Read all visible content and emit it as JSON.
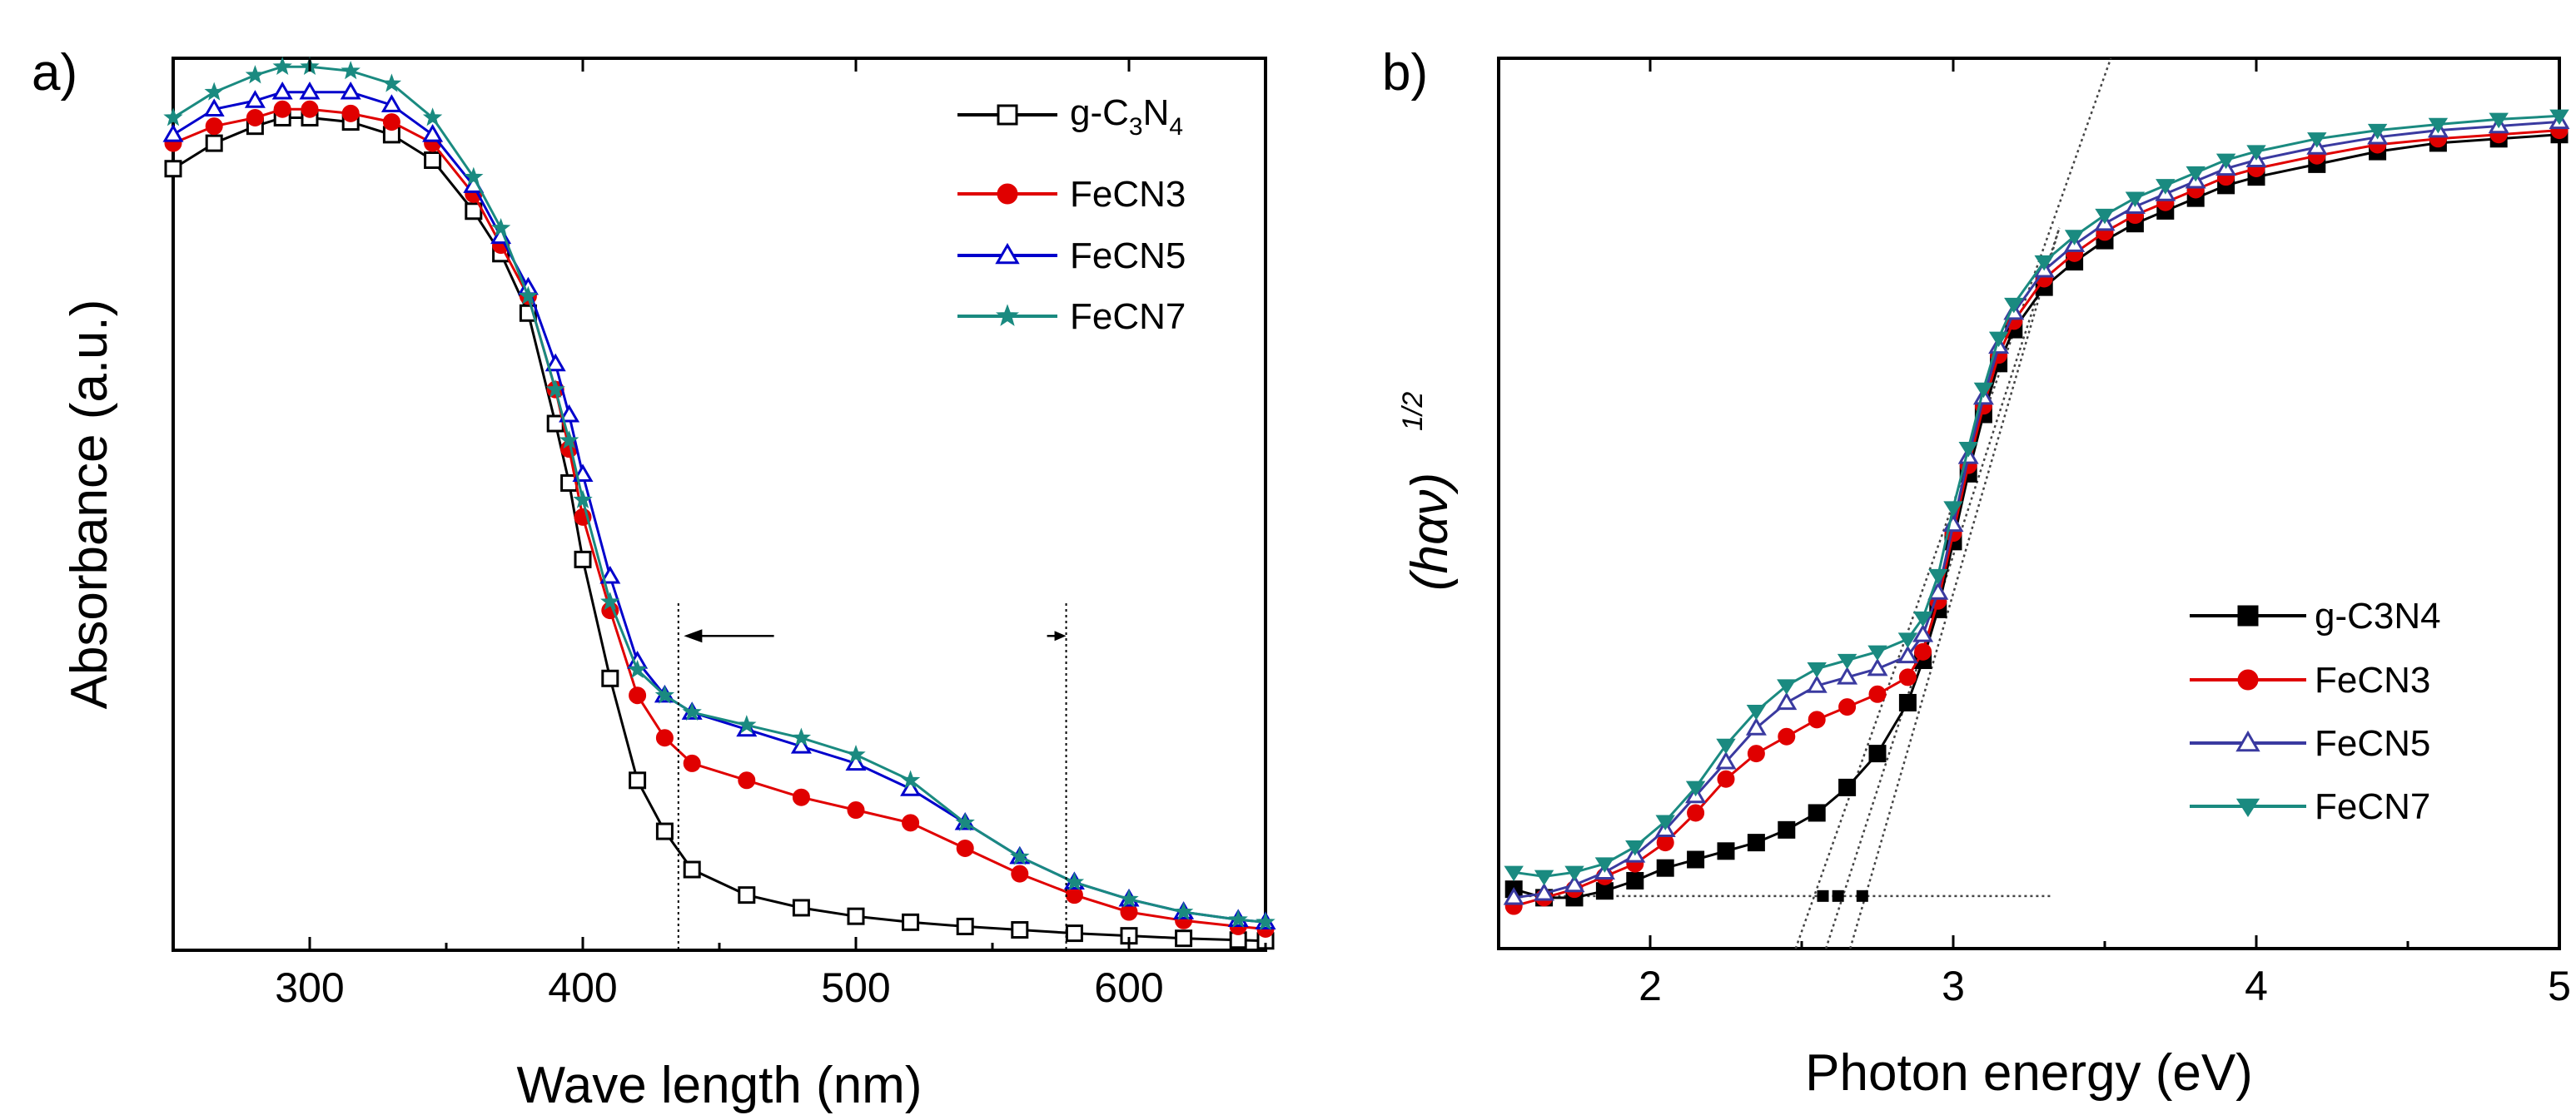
{
  "chart_data": [
    {
      "type": "line",
      "panel_label": "a)",
      "xlabel": "Wave length (nm)",
      "ylabel": "Absorbance (a.u.)",
      "xlim": [
        250,
        650
      ],
      "ylim": [
        0,
        1.05
      ],
      "xticks": [
        300,
        400,
        500,
        600
      ],
      "yticks_shown": false,
      "legend_position": "top-right",
      "legend_label_text": {
        "g_prefix": "g-C",
        "three": "3",
        "n": "N",
        "four": "4"
      },
      "annotation": {
        "vlines": [
          435,
          577
        ],
        "arrow_from": 470,
        "arrow_to": 437,
        "arrow_y": 0.37,
        "arrow2_from": 570,
        "arrow2_to": 577
      },
      "series": [
        {
          "name": "g-C3N4",
          "color": "#000000",
          "marker": "open-square",
          "x": [
            250,
            265,
            280,
            290,
            300,
            315,
            330,
            345,
            360,
            370,
            380,
            390,
            395,
            400,
            410,
            420,
            430,
            440,
            460,
            480,
            500,
            520,
            540,
            560,
            580,
            600,
            620,
            640,
            650
          ],
          "y": [
            0.92,
            0.95,
            0.97,
            0.98,
            0.98,
            0.975,
            0.96,
            0.93,
            0.87,
            0.82,
            0.75,
            0.62,
            0.55,
            0.46,
            0.32,
            0.2,
            0.14,
            0.095,
            0.065,
            0.05,
            0.04,
            0.033,
            0.028,
            0.024,
            0.02,
            0.017,
            0.014,
            0.012,
            0.011
          ]
        },
        {
          "name": "FeCN3",
          "color": "#e00000",
          "marker": "filled-circle",
          "x": [
            250,
            265,
            280,
            290,
            300,
            315,
            330,
            345,
            360,
            370,
            380,
            390,
            395,
            400,
            410,
            420,
            430,
            440,
            460,
            480,
            500,
            520,
            540,
            560,
            580,
            600,
            620,
            640,
            650
          ],
          "y": [
            0.95,
            0.97,
            0.98,
            0.99,
            0.99,
            0.985,
            0.975,
            0.95,
            0.89,
            0.83,
            0.77,
            0.66,
            0.59,
            0.51,
            0.4,
            0.3,
            0.25,
            0.22,
            0.2,
            0.18,
            0.165,
            0.15,
            0.12,
            0.09,
            0.065,
            0.045,
            0.035,
            0.028,
            0.025
          ]
        },
        {
          "name": "FeCN5",
          "color": "#0000cc",
          "marker": "open-triangle",
          "x": [
            250,
            265,
            280,
            290,
            300,
            315,
            330,
            345,
            360,
            370,
            380,
            390,
            395,
            400,
            410,
            420,
            430,
            440,
            460,
            480,
            500,
            520,
            540,
            560,
            580,
            600,
            620,
            640,
            650
          ],
          "y": [
            0.96,
            0.99,
            1.0,
            1.01,
            1.01,
            1.01,
            0.995,
            0.96,
            0.9,
            0.84,
            0.78,
            0.69,
            0.63,
            0.56,
            0.44,
            0.34,
            0.3,
            0.28,
            0.26,
            0.24,
            0.22,
            0.19,
            0.15,
            0.11,
            0.08,
            0.06,
            0.045,
            0.036,
            0.033
          ]
        },
        {
          "name": "FeCN7",
          "color": "#1a8a80",
          "marker": "filled-star",
          "x": [
            250,
            265,
            280,
            290,
            300,
            315,
            330,
            345,
            360,
            370,
            380,
            390,
            395,
            400,
            410,
            420,
            430,
            440,
            460,
            480,
            500,
            520,
            540,
            560,
            580,
            600,
            620,
            640,
            650
          ],
          "y": [
            0.98,
            1.01,
            1.03,
            1.04,
            1.04,
            1.035,
            1.02,
            0.98,
            0.91,
            0.85,
            0.77,
            0.66,
            0.6,
            0.53,
            0.41,
            0.33,
            0.3,
            0.28,
            0.265,
            0.25,
            0.23,
            0.2,
            0.15,
            0.11,
            0.08,
            0.06,
            0.045,
            0.036,
            0.033
          ]
        }
      ]
    },
    {
      "type": "line",
      "panel_label": "b)",
      "xlabel": "Photon energy (eV)",
      "ylabel_text": "(hαν)",
      "ylabel_sup": "1/2",
      "xlim": [
        1.5,
        5.0
      ],
      "ylim": [
        0,
        1.05
      ],
      "xticks": [
        2,
        3,
        4,
        5
      ],
      "yticks_shown": false,
      "legend_position": "bottom-right",
      "tangent_lines": [
        {
          "x": [
            2.48,
            3.52
          ],
          "y": [
            -0.02,
            1.1
          ]
        },
        {
          "x": [
            2.58,
            3.35
          ],
          "y": [
            -0.02,
            0.85
          ]
        },
        {
          "x": [
            2.66,
            3.35
          ],
          "y": [
            -0.02,
            0.85
          ]
        }
      ],
      "baseline": {
        "x": [
          1.6,
          3.32
        ],
        "y": [
          0.062,
          0.062
        ]
      },
      "intercept_points": [
        2.57,
        2.62,
        2.7
      ],
      "series": [
        {
          "name": "g-C3N4",
          "color": "#000000",
          "marker": "filled-square",
          "x": [
            1.55,
            1.65,
            1.75,
            1.85,
            1.95,
            2.05,
            2.15,
            2.25,
            2.35,
            2.45,
            2.55,
            2.65,
            2.75,
            2.85,
            2.9,
            2.95,
            3.0,
            3.05,
            3.1,
            3.15,
            3.2,
            3.3,
            3.4,
            3.5,
            3.6,
            3.7,
            3.8,
            3.9,
            4.0,
            4.2,
            4.4,
            4.6,
            4.8,
            5.0
          ],
          "y": [
            0.07,
            0.06,
            0.06,
            0.068,
            0.08,
            0.095,
            0.105,
            0.115,
            0.125,
            0.14,
            0.16,
            0.19,
            0.23,
            0.29,
            0.34,
            0.4,
            0.48,
            0.56,
            0.63,
            0.69,
            0.73,
            0.78,
            0.81,
            0.835,
            0.855,
            0.87,
            0.885,
            0.9,
            0.91,
            0.925,
            0.94,
            0.95,
            0.955,
            0.96
          ]
        },
        {
          "name": "FeCN3",
          "color": "#e00000",
          "marker": "filled-circle",
          "x": [
            1.55,
            1.65,
            1.75,
            1.85,
            1.95,
            2.05,
            2.15,
            2.25,
            2.35,
            2.45,
            2.55,
            2.65,
            2.75,
            2.85,
            2.9,
            2.95,
            3.0,
            3.05,
            3.1,
            3.15,
            3.2,
            3.3,
            3.4,
            3.5,
            3.6,
            3.7,
            3.8,
            3.9,
            4.0,
            4.2,
            4.4,
            4.6,
            4.8,
            5.0
          ],
          "y": [
            0.05,
            0.06,
            0.07,
            0.085,
            0.1,
            0.125,
            0.16,
            0.2,
            0.23,
            0.25,
            0.27,
            0.285,
            0.3,
            0.32,
            0.35,
            0.41,
            0.49,
            0.57,
            0.64,
            0.7,
            0.74,
            0.79,
            0.82,
            0.845,
            0.865,
            0.88,
            0.895,
            0.91,
            0.92,
            0.935,
            0.948,
            0.955,
            0.96,
            0.965
          ]
        },
        {
          "name": "FeCN5",
          "color": "#3a3aa0",
          "marker": "open-triangle",
          "x": [
            1.55,
            1.65,
            1.75,
            1.85,
            1.95,
            2.05,
            2.15,
            2.25,
            2.35,
            2.45,
            2.55,
            2.65,
            2.75,
            2.85,
            2.9,
            2.95,
            3.0,
            3.05,
            3.1,
            3.15,
            3.2,
            3.3,
            3.4,
            3.5,
            3.6,
            3.7,
            3.8,
            3.9,
            4.0,
            4.2,
            4.4,
            4.6,
            4.8,
            5.0
          ],
          "y": [
            0.06,
            0.065,
            0.075,
            0.09,
            0.11,
            0.14,
            0.18,
            0.22,
            0.26,
            0.29,
            0.31,
            0.32,
            0.33,
            0.345,
            0.37,
            0.42,
            0.5,
            0.58,
            0.65,
            0.71,
            0.75,
            0.8,
            0.83,
            0.855,
            0.875,
            0.89,
            0.905,
            0.92,
            0.93,
            0.945,
            0.957,
            0.965,
            0.97,
            0.975
          ]
        },
        {
          "name": "FeCN7",
          "color": "#1a8a80",
          "marker": "filled-triangle-down",
          "x": [
            1.55,
            1.65,
            1.75,
            1.85,
            1.95,
            2.05,
            2.15,
            2.25,
            2.35,
            2.45,
            2.55,
            2.65,
            2.75,
            2.85,
            2.9,
            2.95,
            3.0,
            3.05,
            3.1,
            3.15,
            3.2,
            3.3,
            3.4,
            3.5,
            3.6,
            3.7,
            3.8,
            3.9,
            4.0,
            4.2,
            4.4,
            4.6,
            4.8,
            5.0
          ],
          "y": [
            0.09,
            0.085,
            0.09,
            0.1,
            0.12,
            0.15,
            0.19,
            0.24,
            0.28,
            0.31,
            0.33,
            0.34,
            0.35,
            0.365,
            0.39,
            0.44,
            0.52,
            0.59,
            0.66,
            0.72,
            0.76,
            0.81,
            0.84,
            0.865,
            0.885,
            0.9,
            0.915,
            0.93,
            0.94,
            0.955,
            0.965,
            0.972,
            0.978,
            0.982
          ]
        }
      ]
    }
  ]
}
